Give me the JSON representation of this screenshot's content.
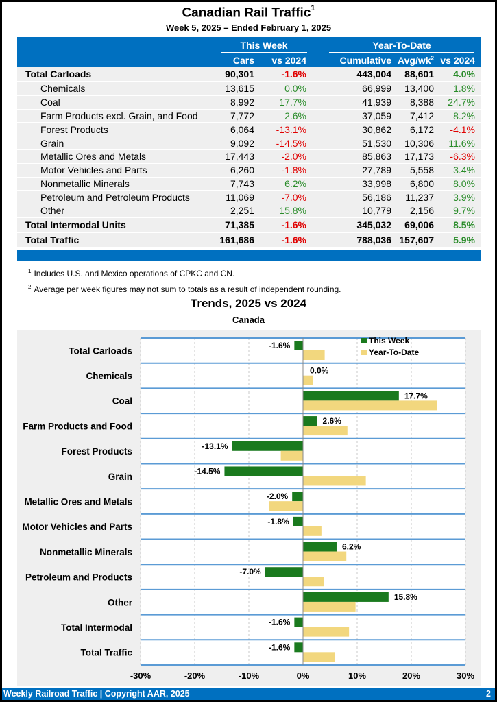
{
  "header": {
    "title": "Canadian Rail Traffic",
    "title_footnote": "1",
    "subtitle": "Week 5, 2025 – Ended February 1, 2025"
  },
  "table": {
    "group_headers": {
      "this_week": "This Week",
      "ytd": "Year-To-Date"
    },
    "columns": [
      "Cars",
      "vs 2024",
      "Cumulative",
      "Avg/wk",
      "vs 2024"
    ],
    "avg_footnote": "2",
    "rows": [
      {
        "label": "Total Carloads",
        "type": "total",
        "cars": "90,301",
        "wk_vs": "-1.6%",
        "cum": "443,004",
        "avg": "88,601",
        "ytd_vs": "4.0%"
      },
      {
        "label": "Chemicals",
        "type": "sub",
        "cars": "13,615",
        "wk_vs": "0.0%",
        "cum": "66,999",
        "avg": "13,400",
        "ytd_vs": "1.8%"
      },
      {
        "label": "Coal",
        "type": "sub",
        "cars": "8,992",
        "wk_vs": "17.7%",
        "cum": "41,939",
        "avg": "8,388",
        "ytd_vs": "24.7%"
      },
      {
        "label": "Farm Products excl. Grain, and Food",
        "type": "sub",
        "cars": "7,772",
        "wk_vs": "2.6%",
        "cum": "37,059",
        "avg": "7,412",
        "ytd_vs": "8.2%"
      },
      {
        "label": "Forest Products",
        "type": "sub",
        "cars": "6,064",
        "wk_vs": "-13.1%",
        "cum": "30,862",
        "avg": "6,172",
        "ytd_vs": "-4.1%"
      },
      {
        "label": "Grain",
        "type": "sub",
        "cars": "9,092",
        "wk_vs": "-14.5%",
        "cum": "51,530",
        "avg": "10,306",
        "ytd_vs": "11.6%"
      },
      {
        "label": "Metallic Ores and Metals",
        "type": "sub",
        "cars": "17,443",
        "wk_vs": "-2.0%",
        "cum": "85,863",
        "avg": "17,173",
        "ytd_vs": "-6.3%"
      },
      {
        "label": "Motor Vehicles and Parts",
        "type": "sub",
        "cars": "6,260",
        "wk_vs": "-1.8%",
        "cum": "27,789",
        "avg": "5,558",
        "ytd_vs": "3.4%"
      },
      {
        "label": "Nonmetallic Minerals",
        "type": "sub",
        "cars": "7,743",
        "wk_vs": "6.2%",
        "cum": "33,998",
        "avg": "6,800",
        "ytd_vs": "8.0%"
      },
      {
        "label": "Petroleum and Petroleum Products",
        "type": "sub",
        "cars": "11,069",
        "wk_vs": "-7.0%",
        "cum": "56,186",
        "avg": "11,237",
        "ytd_vs": "3.9%"
      },
      {
        "label": "Other",
        "type": "sub",
        "cars": "2,251",
        "wk_vs": "15.8%",
        "cum": "10,779",
        "avg": "2,156",
        "ytd_vs": "9.7%"
      },
      {
        "label": "Total Intermodal Units",
        "type": "total",
        "cars": "71,385",
        "wk_vs": "-1.6%",
        "cum": "345,032",
        "avg": "69,006",
        "ytd_vs": "8.5%"
      },
      {
        "label": "Total Traffic",
        "type": "total",
        "cars": "161,686",
        "wk_vs": "-1.6%",
        "cum": "788,036",
        "avg": "157,607",
        "ytd_vs": "5.9%"
      }
    ]
  },
  "notes": [
    {
      "mark": "1",
      "text": "Includes U.S. and Mexico operations of CPKC and CN."
    },
    {
      "mark": "2",
      "text": "Average per week figures may not sum to totals as a result of independent rounding."
    }
  ],
  "colors": {
    "brand_blue": "#0070c0",
    "negative": "#e00000",
    "positive": "#2a8c2a",
    "this_week_bar": "#1a7a1e",
    "ytd_bar": "#f2d77e"
  },
  "chart_data": {
    "type": "bar",
    "orientation": "horizontal",
    "title": "Trends, 2025 vs 2024",
    "subtitle": "Canada",
    "categories": [
      "Total Carloads",
      "Chemicals",
      "Coal",
      "Farm Products and Food",
      "Forest Products",
      "Grain",
      "Metallic Ores and Metals",
      "Motor Vehicles and Parts",
      "Nonmetallic Minerals",
      "Petroleum and Products",
      "Other",
      "Total Intermodal",
      "Total Traffic"
    ],
    "series": [
      {
        "name": "This Week",
        "values": [
          -1.6,
          0.0,
          17.7,
          2.6,
          -13.1,
          -14.5,
          -2.0,
          -1.8,
          6.2,
          -7.0,
          15.8,
          -1.6,
          -1.6
        ],
        "labels": [
          "-1.6%",
          "0.0%",
          "17.7%",
          "2.6%",
          "-13.1%",
          "-14.5%",
          "-2.0%",
          "-1.8%",
          "6.2%",
          "-7.0%",
          "15.8%",
          "-1.6%",
          "-1.6%"
        ]
      },
      {
        "name": "Year-To-Date",
        "values": [
          4.0,
          1.8,
          24.7,
          8.2,
          -4.1,
          11.6,
          -6.3,
          3.4,
          8.0,
          3.9,
          9.7,
          8.5,
          5.9
        ]
      }
    ],
    "xlim": [
      -30,
      30
    ],
    "xticks": [
      -30,
      -20,
      -10,
      0,
      10,
      20,
      30
    ],
    "xtick_labels": [
      "-30%",
      "-20%",
      "-10%",
      "0%",
      "10%",
      "20%",
      "30%"
    ],
    "grid": true,
    "legend": "top-right"
  },
  "footer": {
    "left": "Weekly Railroad Traffic | Copyright AAR, 2025",
    "page": "2"
  }
}
